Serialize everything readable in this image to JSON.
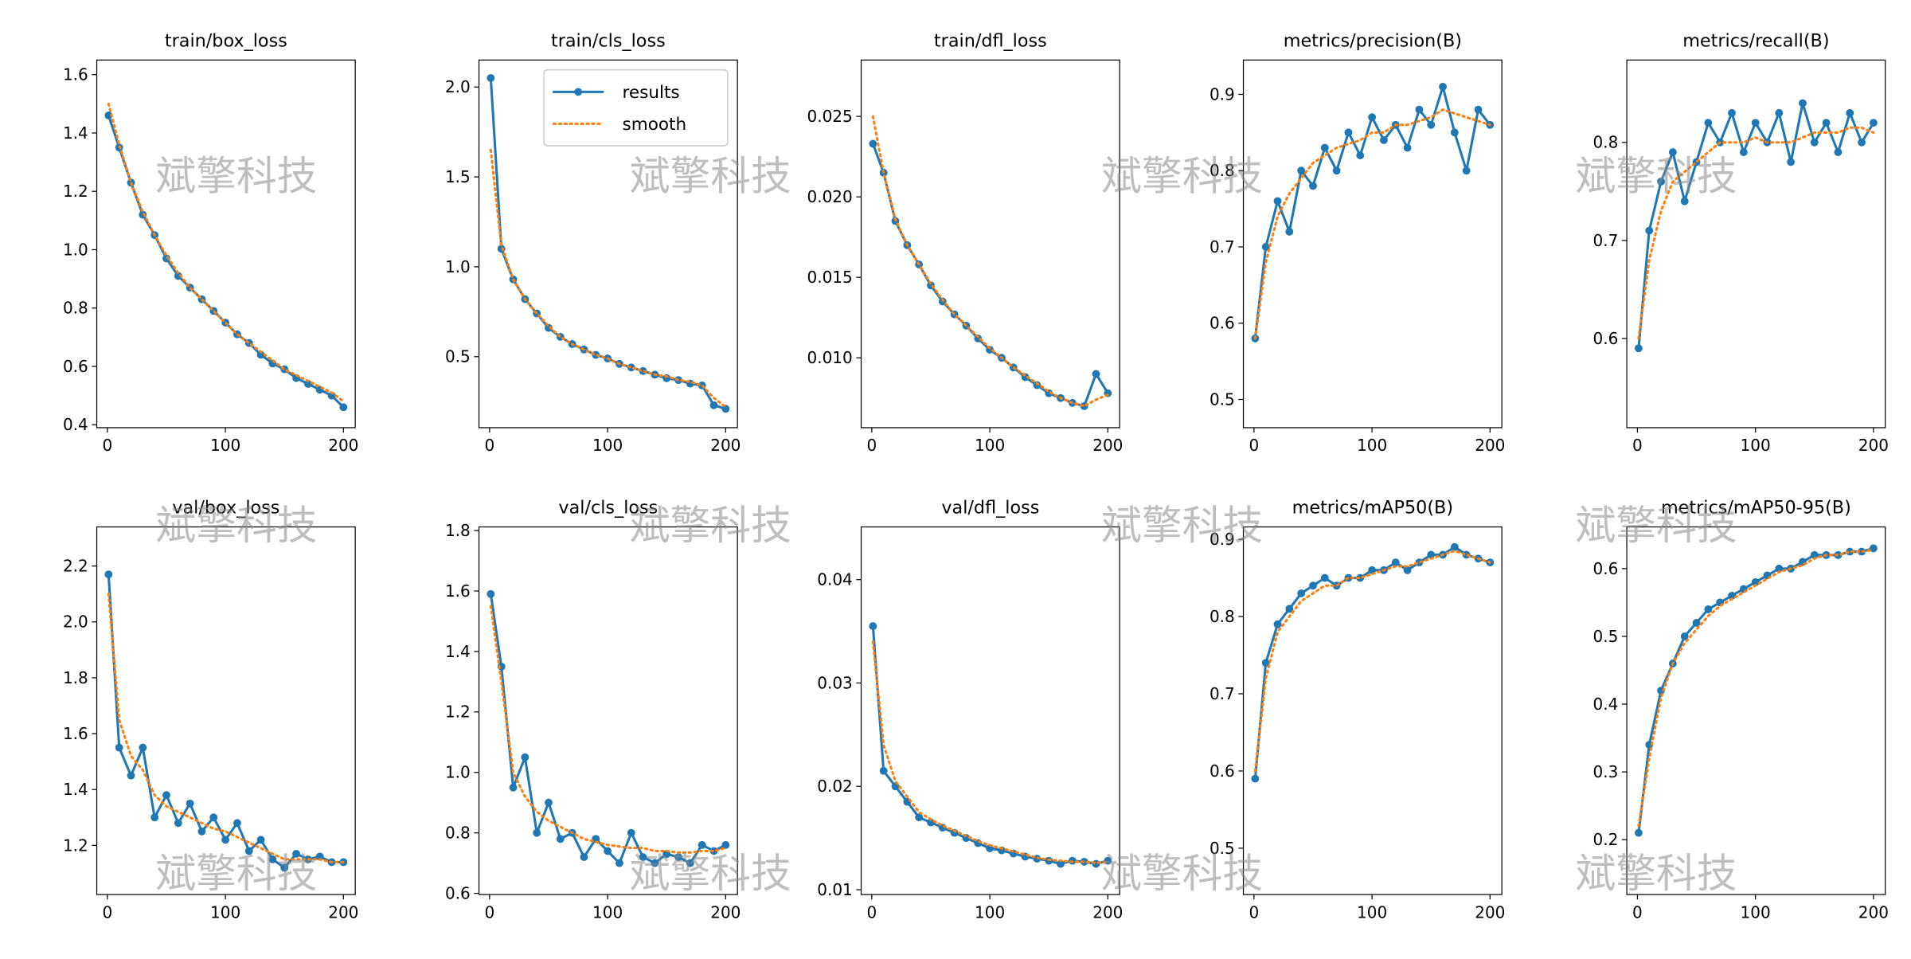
{
  "watermark": "斌擎科技",
  "chart_data": [
    {
      "type": "line",
      "title": "train/box_loss",
      "x": [
        1,
        10,
        20,
        30,
        40,
        50,
        60,
        70,
        80,
        90,
        100,
        110,
        120,
        130,
        140,
        150,
        160,
        170,
        180,
        190,
        200
      ],
      "series": [
        {
          "color": "#1f77b4",
          "values": [
            1.46,
            1.35,
            1.23,
            1.12,
            1.05,
            0.97,
            0.91,
            0.87,
            0.83,
            0.79,
            0.75,
            0.71,
            0.68,
            0.64,
            0.61,
            0.59,
            0.56,
            0.54,
            0.52,
            0.5,
            0.46
          ]
        },
        {
          "color": "#ff7f0e",
          "values": [
            1.5,
            1.36,
            1.23,
            1.13,
            1.05,
            0.98,
            0.92,
            0.87,
            0.83,
            0.79,
            0.75,
            0.71,
            0.68,
            0.65,
            0.62,
            0.59,
            0.57,
            0.55,
            0.53,
            0.51,
            0.48
          ]
        }
      ],
      "xlim": [
        -9,
        210
      ],
      "xticks": [
        0,
        100,
        200
      ],
      "ylim": [
        0.39,
        1.65
      ],
      "yticks": [
        0.4,
        0.6,
        0.8,
        {
          "value": 1.0,
          "label": "1.0"
        },
        1.2,
        1.4,
        1.6
      ]
    },
    {
      "type": "line",
      "title": "train/cls_loss",
      "x": [
        1,
        10,
        20,
        30,
        40,
        50,
        60,
        70,
        80,
        90,
        100,
        110,
        120,
        130,
        140,
        150,
        160,
        170,
        180,
        190,
        200
      ],
      "series": [
        {
          "name": "results",
          "color": "#1f77b4",
          "values": [
            2.05,
            1.1,
            0.93,
            0.82,
            0.74,
            0.66,
            0.61,
            0.57,
            0.54,
            0.51,
            0.49,
            0.46,
            0.44,
            0.42,
            0.4,
            0.38,
            0.37,
            0.35,
            0.34,
            0.23,
            0.21
          ]
        },
        {
          "name": "smooth",
          "color": "#ff7f0e",
          "values": [
            1.65,
            1.12,
            0.93,
            0.82,
            0.74,
            0.67,
            0.61,
            0.57,
            0.54,
            0.51,
            0.49,
            0.46,
            0.44,
            0.42,
            0.4,
            0.39,
            0.37,
            0.36,
            0.34,
            0.27,
            0.22
          ]
        }
      ],
      "legend": "upper right",
      "xlim": [
        -9,
        210
      ],
      "xticks": [
        0,
        100,
        200
      ],
      "ylim": [
        0.105,
        2.15
      ],
      "yticks": [
        0.5,
        {
          "value": 1.0,
          "label": "1.0"
        },
        1.5,
        {
          "value": 2.0,
          "label": "2.0"
        }
      ]
    },
    {
      "type": "line",
      "title": "train/dfl_loss",
      "x": [
        1,
        10,
        20,
        30,
        40,
        50,
        60,
        70,
        80,
        90,
        100,
        110,
        120,
        130,
        140,
        150,
        160,
        170,
        180,
        190,
        200
      ],
      "series": [
        {
          "color": "#1f77b4",
          "values": [
            0.0233,
            0.0215,
            0.0185,
            0.017,
            0.0158,
            0.0145,
            0.0135,
            0.0127,
            0.012,
            0.0112,
            0.0105,
            0.01,
            0.0094,
            0.0088,
            0.0083,
            0.0078,
            0.0075,
            0.0072,
            0.007,
            0.009,
            0.0078
          ]
        },
        {
          "color": "#ff7f0e",
          "values": [
            0.025,
            0.0215,
            0.0186,
            0.017,
            0.0158,
            0.0146,
            0.0136,
            0.0127,
            0.012,
            0.0113,
            0.0106,
            0.01,
            0.0094,
            0.0089,
            0.0084,
            0.0079,
            0.0075,
            0.0072,
            0.007,
            0.0074,
            0.0077
          ]
        }
      ],
      "xlim": [
        -9,
        210
      ],
      "xticks": [
        0,
        100,
        200
      ],
      "ylim": [
        0.00566,
        0.0285
      ],
      "yticks": [
        {
          "value": 0.01,
          "label": "0.010"
        },
        0.015,
        {
          "value": 0.02,
          "label": "0.020"
        },
        0.025
      ]
    },
    {
      "type": "line",
      "title": "metrics/precision(B)",
      "x": [
        1,
        10,
        20,
        30,
        40,
        50,
        60,
        70,
        80,
        90,
        100,
        110,
        120,
        130,
        140,
        150,
        160,
        170,
        180,
        190,
        200
      ],
      "series": [
        {
          "color": "#1f77b4",
          "values": [
            0.58,
            0.7,
            0.76,
            0.72,
            0.8,
            0.78,
            0.83,
            0.8,
            0.85,
            0.82,
            0.87,
            0.84,
            0.86,
            0.83,
            0.88,
            0.86,
            0.91,
            0.85,
            0.8,
            0.88,
            0.86
          ]
        },
        {
          "color": "#ff7f0e",
          "values": [
            0.58,
            0.68,
            0.74,
            0.77,
            0.79,
            0.81,
            0.82,
            0.83,
            0.835,
            0.84,
            0.85,
            0.85,
            0.86,
            0.86,
            0.865,
            0.87,
            0.88,
            0.875,
            0.87,
            0.865,
            0.86
          ]
        }
      ],
      "xlim": [
        -9,
        210
      ],
      "xticks": [
        0,
        100,
        200
      ],
      "ylim": [
        0.463,
        0.945
      ],
      "yticks": [
        0.5,
        0.6,
        0.7,
        0.8,
        0.9
      ]
    },
    {
      "type": "line",
      "title": "metrics/recall(B)",
      "x": [
        1,
        10,
        20,
        30,
        40,
        50,
        60,
        70,
        80,
        90,
        100,
        110,
        120,
        130,
        140,
        150,
        160,
        170,
        180,
        190,
        200
      ],
      "series": [
        {
          "color": "#1f77b4",
          "values": [
            0.59,
            0.71,
            0.76,
            0.79,
            0.74,
            0.78,
            0.82,
            0.8,
            0.83,
            0.79,
            0.82,
            0.8,
            0.83,
            0.78,
            0.84,
            0.8,
            0.82,
            0.79,
            0.83,
            0.8,
            0.82
          ]
        },
        {
          "color": "#ff7f0e",
          "values": [
            0.6,
            0.68,
            0.73,
            0.76,
            0.77,
            0.78,
            0.79,
            0.8,
            0.8,
            0.8,
            0.805,
            0.8,
            0.8,
            0.8,
            0.805,
            0.81,
            0.81,
            0.81,
            0.815,
            0.815,
            0.81
          ]
        }
      ],
      "xlim": [
        -9,
        210
      ],
      "xticks": [
        0,
        100,
        200
      ],
      "ylim": [
        0.509,
        0.884
      ],
      "yticks": [
        0.6,
        0.7,
        0.8
      ]
    },
    {
      "type": "line",
      "title": "val/box_loss",
      "x": [
        1,
        10,
        20,
        30,
        40,
        50,
        60,
        70,
        80,
        90,
        100,
        110,
        120,
        130,
        140,
        150,
        160,
        170,
        180,
        190,
        200
      ],
      "series": [
        {
          "color": "#1f77b4",
          "values": [
            2.17,
            1.55,
            1.45,
            1.55,
            1.3,
            1.38,
            1.28,
            1.35,
            1.25,
            1.3,
            1.22,
            1.28,
            1.18,
            1.22,
            1.15,
            1.12,
            1.17,
            1.15,
            1.16,
            1.14,
            1.14
          ]
        },
        {
          "color": "#ff7f0e",
          "values": [
            2.1,
            1.65,
            1.52,
            1.47,
            1.38,
            1.34,
            1.32,
            1.3,
            1.28,
            1.26,
            1.25,
            1.23,
            1.21,
            1.19,
            1.17,
            1.15,
            1.15,
            1.15,
            1.15,
            1.14,
            1.14
          ]
        }
      ],
      "xlim": [
        -9,
        210
      ],
      "xticks": [
        0,
        100,
        200
      ],
      "ylim": [
        1.024,
        2.34
      ],
      "yticks": [
        1.2,
        1.4,
        1.6,
        1.8,
        {
          "value": 2.0,
          "label": "2.0"
        },
        2.2
      ]
    },
    {
      "type": "line",
      "title": "val/cls_loss",
      "x": [
        1,
        10,
        20,
        30,
        40,
        50,
        60,
        70,
        80,
        90,
        100,
        110,
        120,
        130,
        140,
        150,
        160,
        170,
        180,
        190,
        200
      ],
      "series": [
        {
          "color": "#1f77b4",
          "values": [
            1.59,
            1.35,
            0.95,
            1.05,
            0.8,
            0.9,
            0.78,
            0.8,
            0.72,
            0.78,
            0.74,
            0.7,
            0.8,
            0.72,
            0.7,
            0.73,
            0.72,
            0.7,
            0.76,
            0.74,
            0.76
          ]
        },
        {
          "color": "#ff7f0e",
          "values": [
            1.55,
            1.3,
            1.0,
            0.92,
            0.87,
            0.84,
            0.82,
            0.8,
            0.78,
            0.77,
            0.76,
            0.755,
            0.75,
            0.75,
            0.74,
            0.74,
            0.735,
            0.735,
            0.74,
            0.74,
            0.75
          ]
        }
      ],
      "xlim": [
        -9,
        210
      ],
      "xticks": [
        0,
        100,
        200
      ],
      "ylim": [
        0.596,
        1.812
      ],
      "yticks": [
        0.6,
        0.8,
        {
          "value": 1.0,
          "label": "1.0"
        },
        1.2,
        1.4,
        1.6,
        1.8
      ]
    },
    {
      "type": "line",
      "title": "val/dfl_loss",
      "x": [
        1,
        10,
        20,
        30,
        40,
        50,
        60,
        70,
        80,
        90,
        100,
        110,
        120,
        130,
        140,
        150,
        160,
        170,
        180,
        190,
        200
      ],
      "series": [
        {
          "color": "#1f77b4",
          "values": [
            0.0355,
            0.0215,
            0.02,
            0.0185,
            0.017,
            0.0165,
            0.016,
            0.0155,
            0.015,
            0.0145,
            0.014,
            0.0138,
            0.0135,
            0.0132,
            0.013,
            0.0128,
            0.0125,
            0.0128,
            0.0127,
            0.0125,
            0.0128
          ]
        },
        {
          "color": "#ff7f0e",
          "values": [
            0.034,
            0.024,
            0.0205,
            0.019,
            0.0175,
            0.0168,
            0.0162,
            0.0157,
            0.0152,
            0.0147,
            0.0143,
            0.014,
            0.0137,
            0.0134,
            0.0131,
            0.0129,
            0.0128,
            0.0127,
            0.0127,
            0.0126,
            0.0127
          ]
        }
      ],
      "xlim": [
        -9,
        210
      ],
      "xticks": [
        0,
        100,
        200
      ],
      "ylim": [
        0.00953,
        0.0451
      ],
      "yticks": [
        0.01,
        0.02,
        0.03,
        0.04
      ]
    },
    {
      "type": "line",
      "title": "metrics/mAP50(B)",
      "x": [
        1,
        10,
        20,
        30,
        40,
        50,
        60,
        70,
        80,
        90,
        100,
        110,
        120,
        130,
        140,
        150,
        160,
        170,
        180,
        190,
        200
      ],
      "series": [
        {
          "color": "#1f77b4",
          "values": [
            0.59,
            0.74,
            0.79,
            0.81,
            0.83,
            0.84,
            0.85,
            0.84,
            0.85,
            0.85,
            0.86,
            0.86,
            0.87,
            0.86,
            0.87,
            0.88,
            0.88,
            0.89,
            0.88,
            0.875,
            0.87
          ]
        },
        {
          "color": "#ff7f0e",
          "values": [
            0.6,
            0.72,
            0.78,
            0.8,
            0.82,
            0.83,
            0.84,
            0.84,
            0.85,
            0.85,
            0.855,
            0.86,
            0.865,
            0.865,
            0.87,
            0.875,
            0.88,
            0.885,
            0.88,
            0.875,
            0.87
          ]
        }
      ],
      "xlim": [
        -9,
        210
      ],
      "xticks": [
        0,
        100,
        200
      ],
      "ylim": [
        0.44,
        0.916
      ],
      "yticks": [
        0.5,
        0.6,
        0.7,
        0.8,
        0.9
      ]
    },
    {
      "type": "line",
      "title": "metrics/mAP50-95(B)",
      "x": [
        1,
        10,
        20,
        30,
        40,
        50,
        60,
        70,
        80,
        90,
        100,
        110,
        120,
        130,
        140,
        150,
        160,
        170,
        180,
        190,
        200
      ],
      "series": [
        {
          "color": "#1f77b4",
          "values": [
            0.21,
            0.34,
            0.42,
            0.46,
            0.5,
            0.52,
            0.54,
            0.55,
            0.56,
            0.57,
            0.58,
            0.59,
            0.6,
            0.6,
            0.61,
            0.62,
            0.62,
            0.62,
            0.625,
            0.625,
            0.63
          ]
        },
        {
          "color": "#ff7f0e",
          "values": [
            0.22,
            0.32,
            0.41,
            0.46,
            0.49,
            0.51,
            0.53,
            0.545,
            0.555,
            0.565,
            0.575,
            0.585,
            0.595,
            0.6,
            0.605,
            0.615,
            0.62,
            0.62,
            0.625,
            0.625,
            0.628
          ]
        }
      ],
      "xlim": [
        -9,
        210
      ],
      "xticks": [
        0,
        100,
        200
      ],
      "ylim": [
        0.119,
        0.6615
      ],
      "yticks": [
        0.2,
        0.3,
        0.4,
        0.5,
        0.6
      ]
    }
  ]
}
